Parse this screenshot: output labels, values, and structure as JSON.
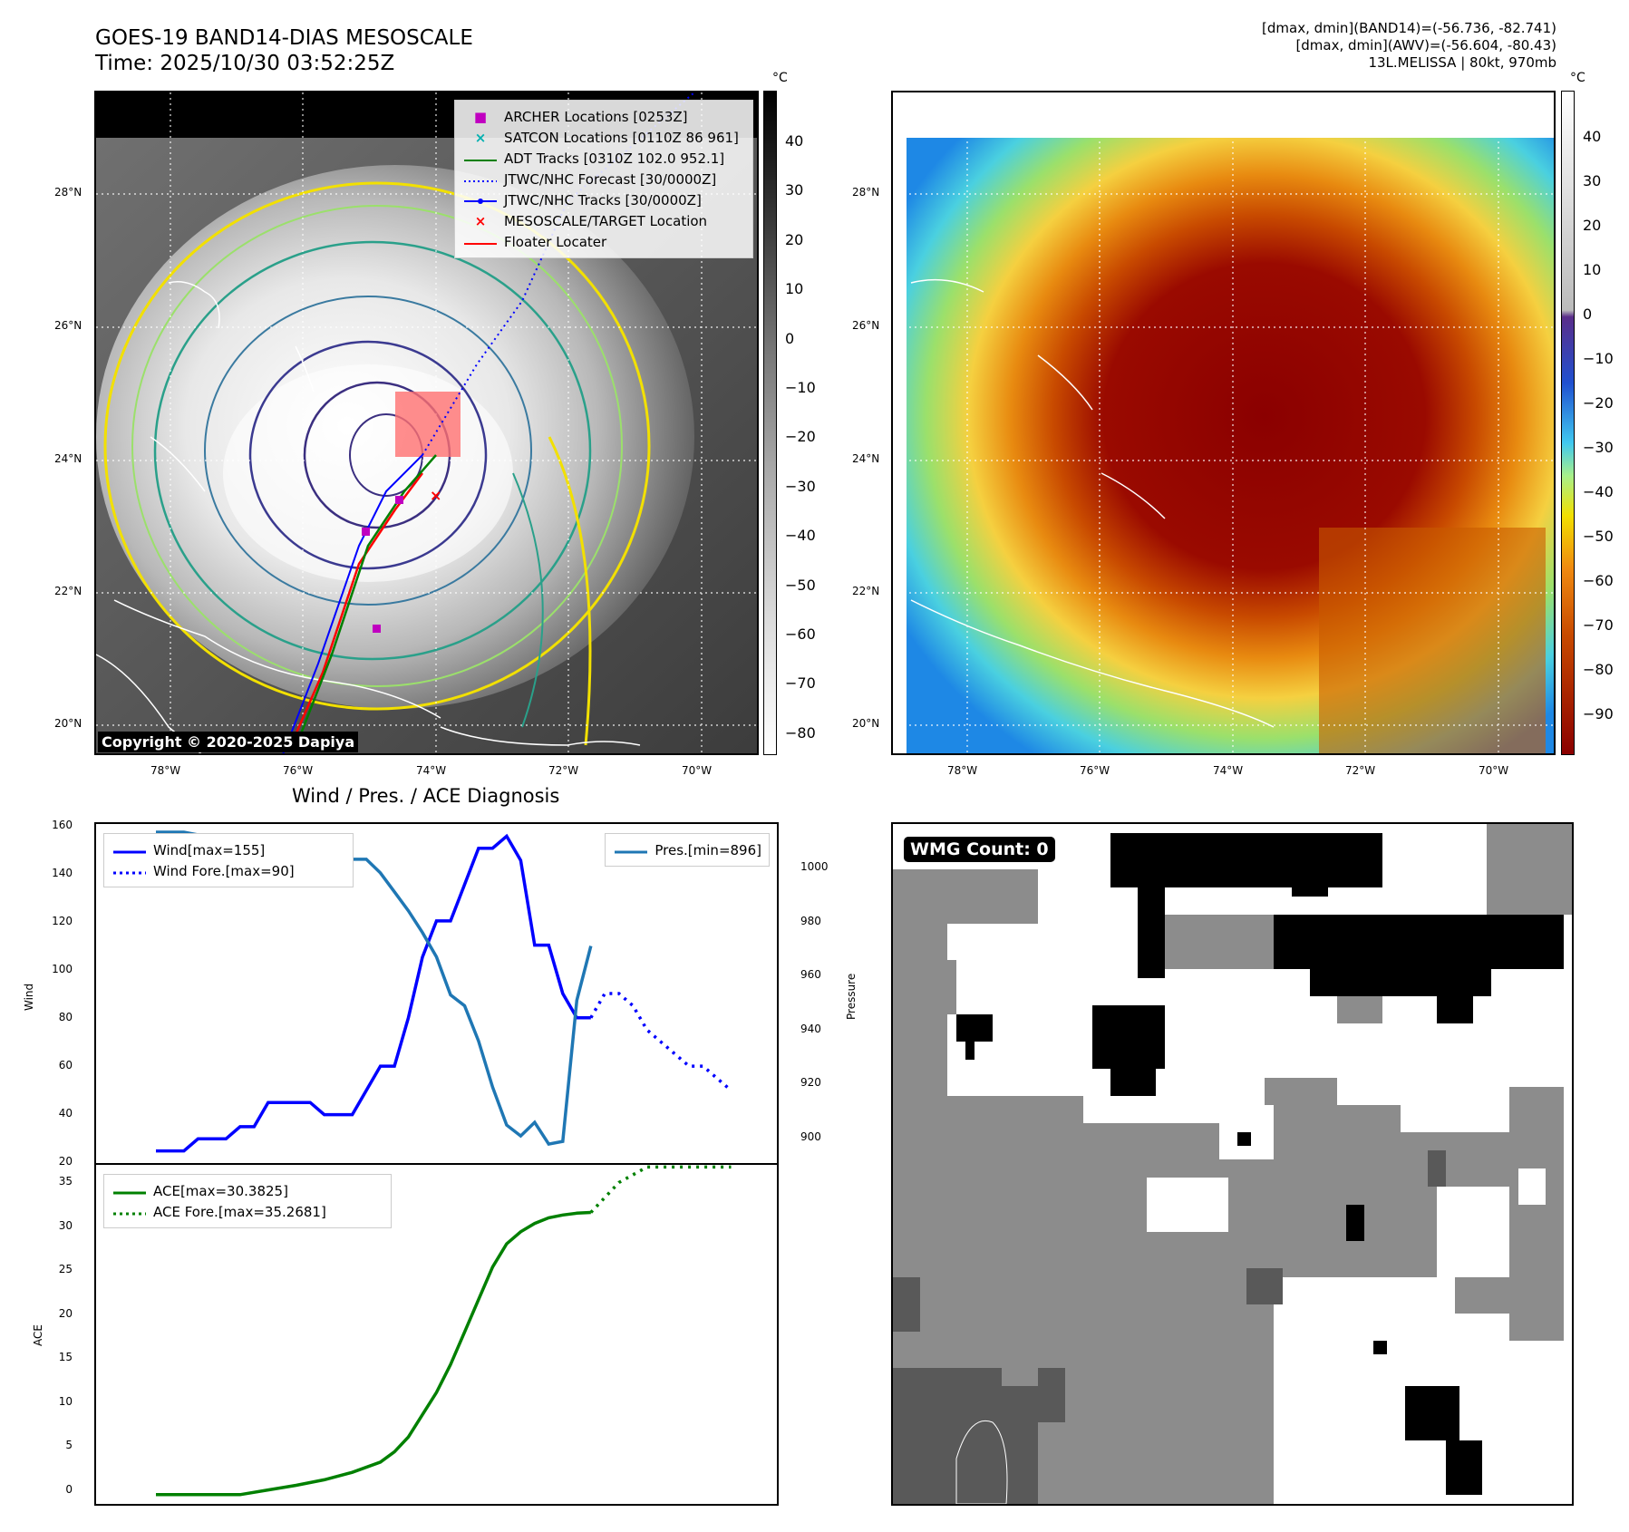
{
  "header": {
    "title_line1": "GOES-19 BAND14-DIAS MESOSCALE",
    "title_line2": "Time: 2025/10/30 03:52:25Z",
    "info_line1": "[dmax, dmin](BAND14)=(-56.736, -82.741)",
    "info_line2": "[dmax, dmin](AWV)=(-56.604, -80.43)",
    "info_line3": "13L.MELISSA | 80kt, 970mb"
  },
  "map": {
    "lat_labels": [
      "28°N",
      "26°N",
      "24°N",
      "22°N",
      "20°N"
    ],
    "lon_labels": [
      "78°W",
      "76°W",
      "74°W",
      "72°W",
      "70°W"
    ],
    "copyright": "Copyright © 2020-2025 Dapiya",
    "legend": [
      {
        "label": "ARCHER Locations [0253Z]",
        "color": "#c000c0",
        "symbol": "square"
      },
      {
        "label": "SATCON Locations [0110Z 86 961]",
        "color": "#00b0b0",
        "symbol": "x"
      },
      {
        "label": "ADT Tracks [0310Z 102.0 952.1]",
        "color": "#008000",
        "symbol": "line"
      },
      {
        "label": "JTWC/NHC Forecast [30/0000Z]",
        "color": "#0000ff",
        "symbol": "dotted"
      },
      {
        "label": "JTWC/NHC Tracks [30/0000Z]",
        "color": "#0000ff",
        "symbol": "line-dot"
      },
      {
        "label": "MESOSCALE/TARGET Location",
        "color": "#ff0000",
        "symbol": "x"
      },
      {
        "label": "Floater Locater",
        "color": "#ff0000",
        "symbol": "line"
      }
    ],
    "colorbar1": {
      "unit": "°C",
      "ticks": [
        "40",
        "30",
        "20",
        "10",
        "0",
        "−10",
        "−20",
        "−30",
        "−40",
        "−50",
        "−60",
        "−70",
        "−80"
      ]
    },
    "colorbar2": {
      "unit": "°C",
      "ticks": [
        "40",
        "30",
        "20",
        "10",
        "0",
        "−10",
        "−20",
        "−30",
        "−40",
        "−50",
        "−60",
        "−70",
        "−80",
        "−90"
      ]
    }
  },
  "wmg": {
    "label": "WMG Count: 0"
  },
  "chart_data": [
    {
      "type": "line",
      "title": "Wind / Pres. / ACE Diagnosis",
      "ylabel": "Wind",
      "y2label": "Pressure",
      "ylim": [
        20,
        160
      ],
      "y2lim": [
        890,
        1015
      ],
      "yticks": [
        "160",
        "140",
        "120",
        "100",
        "80",
        "60",
        "40",
        "20"
      ],
      "y2ticks": [
        "1000",
        "980",
        "960",
        "940",
        "920",
        "900"
      ],
      "series": [
        {
          "name": "Wind[max=155]",
          "color": "#0000ff",
          "style": "solid",
          "x": [
            0,
            2,
            3,
            4,
            5,
            6,
            7,
            8,
            9,
            10,
            11,
            12,
            13,
            14,
            15,
            16,
            17,
            18,
            19,
            20,
            21,
            22,
            23,
            24,
            25,
            26,
            27,
            28,
            29,
            30,
            31
          ],
          "values": [
            25,
            25,
            30,
            30,
            30,
            35,
            35,
            45,
            45,
            45,
            45,
            40,
            40,
            40,
            50,
            60,
            60,
            80,
            105,
            120,
            120,
            135,
            150,
            150,
            155,
            145,
            110,
            110,
            90,
            80,
            80
          ]
        },
        {
          "name": "Wind Fore.[max=90]",
          "color": "#0000ff",
          "style": "dotted",
          "x": [
            31,
            32,
            33,
            34,
            35,
            36,
            37,
            38,
            39,
            40,
            41
          ],
          "values": [
            80,
            90,
            90,
            85,
            75,
            70,
            65,
            60,
            60,
            55,
            50
          ]
        },
        {
          "name": "Pres.[min=896]",
          "color": "#1f77b4",
          "style": "solid",
          "axis": "right",
          "x": [
            0,
            2,
            3,
            5,
            6,
            7,
            8,
            9,
            10,
            12,
            13,
            14,
            15,
            16,
            17,
            18,
            19,
            20,
            21,
            22,
            23,
            24,
            25,
            26,
            27,
            28,
            29,
            30,
            31
          ],
          "values": [
            1012,
            1012,
            1011,
            1010,
            1008,
            1007,
            1006,
            1005,
            1004,
            1003,
            1002,
            1002,
            1002,
            997,
            990,
            983,
            975,
            966,
            952,
            948,
            935,
            918,
            904,
            900,
            905,
            897,
            898,
            950,
            970
          ]
        }
      ]
    },
    {
      "type": "line",
      "ylabel": "ACE",
      "ylim": [
        -1,
        35.5
      ],
      "yticks": [
        "35",
        "30",
        "25",
        "20",
        "15",
        "10",
        "5",
        "0"
      ],
      "series": [
        {
          "name": "ACE[max=30.3825]",
          "color": "#008000",
          "style": "solid",
          "x": [
            0,
            3,
            6,
            8,
            10,
            12,
            14,
            16,
            17,
            18,
            19,
            20,
            21,
            22,
            23,
            24,
            25,
            26,
            27,
            28,
            29,
            30,
            31
          ],
          "values": [
            0,
            0,
            0,
            0.5,
            1,
            1.6,
            2.4,
            3.5,
            4.6,
            6.2,
            8.6,
            11,
            14,
            17.5,
            21,
            24.5,
            27,
            28.3,
            29.2,
            29.8,
            30.1,
            30.3,
            30.38
          ]
        },
        {
          "name": "ACE Fore.[max=35.2681]",
          "color": "#008000",
          "style": "dotted",
          "x": [
            31,
            33,
            35,
            37,
            39,
            41
          ],
          "values": [
            30.38,
            33.6,
            35.27,
            35.27,
            35.27,
            35.27
          ]
        }
      ]
    }
  ]
}
